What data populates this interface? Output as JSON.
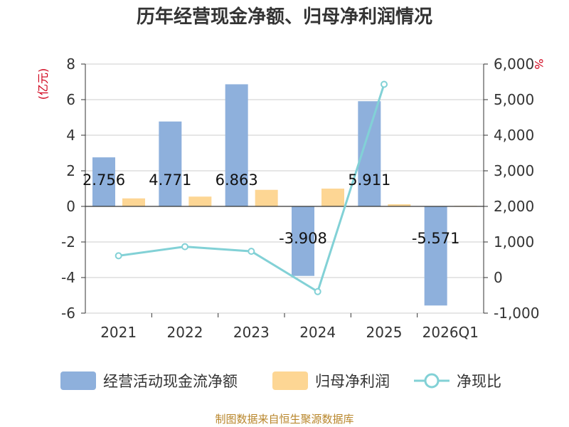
{
  "chart_data": {
    "type": "bar",
    "title": "历年经营现金净额、归母净利润情况",
    "categories": [
      "2021",
      "2022",
      "2023",
      "2024",
      "2025",
      "2026Q1"
    ],
    "series": [
      {
        "name": "经营活动现金流净额",
        "type": "bar",
        "axis": "left",
        "color": "#8eb0dc",
        "values": [
          2.756,
          4.771,
          6.863,
          -3.908,
          5.911,
          -5.571
        ],
        "labels": [
          "2.756",
          "4.771",
          "6.863",
          "-3.908",
          "5.911",
          "-5.571"
        ]
      },
      {
        "name": "归母净利润",
        "type": "bar",
        "axis": "left",
        "color": "#fdd694",
        "values": [
          0.45,
          0.55,
          0.93,
          1.0,
          0.12,
          0.03
        ]
      },
      {
        "name": "净现比",
        "type": "line",
        "axis": "right",
        "color": "#82d1d6",
        "values": [
          612,
          868,
          737,
          -395,
          5430,
          null
        ]
      }
    ],
    "left_axis": {
      "unit": "(亿元)",
      "min": -6,
      "max": 8,
      "ticks": [
        -6,
        -4,
        -2,
        0,
        2,
        4,
        6,
        8
      ]
    },
    "right_axis": {
      "unit": "%",
      "min": -1000,
      "max": 6000,
      "ticks": [
        -1000,
        0,
        1000,
        2000,
        3000,
        4000,
        5000,
        6000
      ],
      "tick_labels": [
        "-1,000",
        "0",
        "1,000",
        "2,000",
        "3,000",
        "4,000",
        "5,000",
        "6,000"
      ]
    },
    "legend_position": "bottom",
    "grid": true,
    "source": "制图数据来自恒生聚源数据库"
  }
}
